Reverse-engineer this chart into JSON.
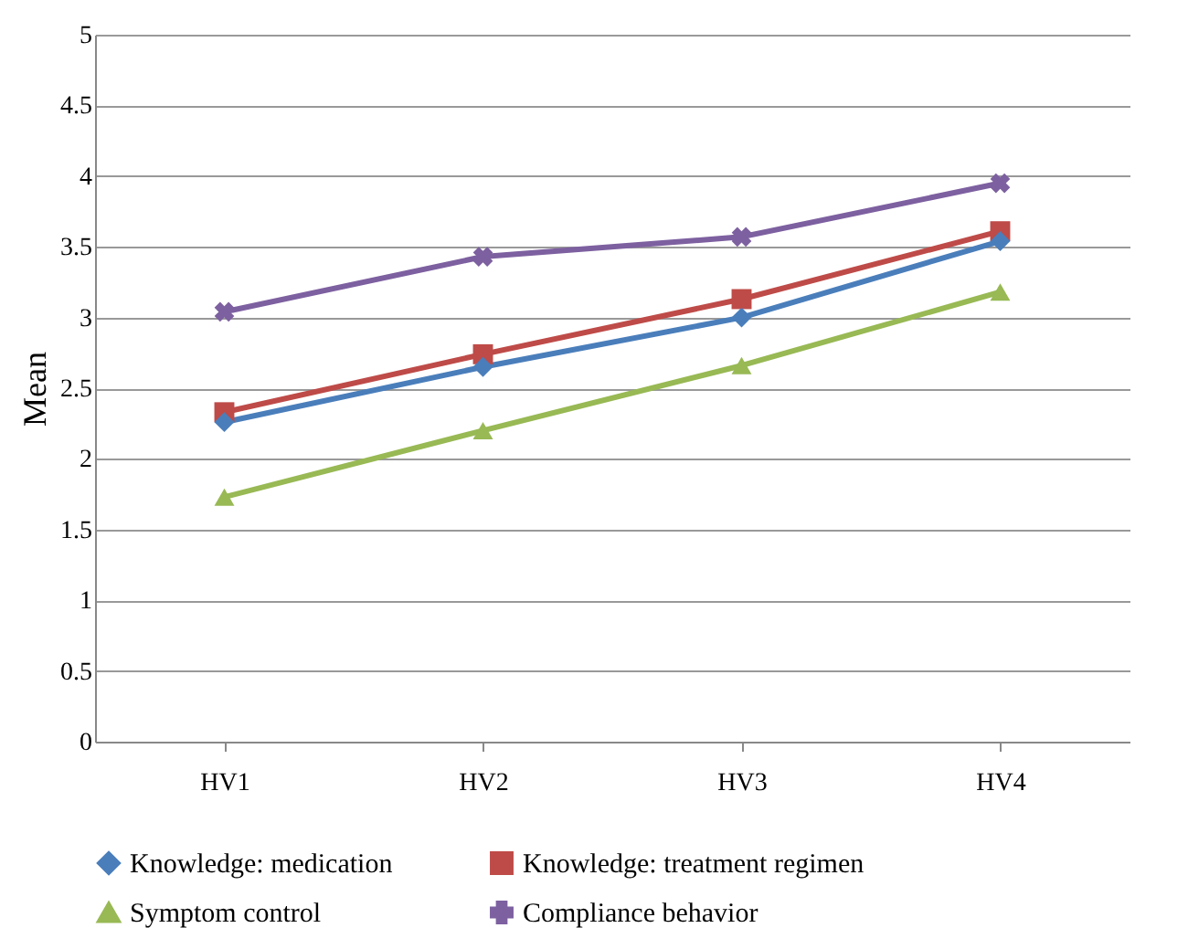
{
  "chart_data": {
    "type": "line",
    "ylabel": "Mean",
    "categories": [
      "HV1",
      "HV2",
      "HV3",
      "HV4"
    ],
    "ylim": [
      0,
      5
    ],
    "yticks": [
      0,
      0.5,
      1,
      1.5,
      2,
      2.5,
      3,
      3.5,
      4,
      4.5,
      5
    ],
    "grid": "y",
    "legend": "bottom",
    "series": [
      {
        "name": "Knowledge: medication",
        "color": "#4a7ebb",
        "marker": "diamond",
        "values": [
          2.26,
          2.65,
          3.0,
          3.54
        ]
      },
      {
        "name": "Knowledge: treatment regimen",
        "color": "#be4b48",
        "marker": "square",
        "values": [
          2.33,
          2.74,
          3.13,
          3.61
        ]
      },
      {
        "name": "Symptom control",
        "color": "#98b954",
        "marker": "triangle",
        "values": [
          1.73,
          2.2,
          2.66,
          3.18
        ]
      },
      {
        "name": "Compliance behavior",
        "color": "#7d60a0",
        "marker": "cross",
        "values": [
          3.04,
          3.43,
          3.57,
          3.95
        ]
      }
    ]
  }
}
